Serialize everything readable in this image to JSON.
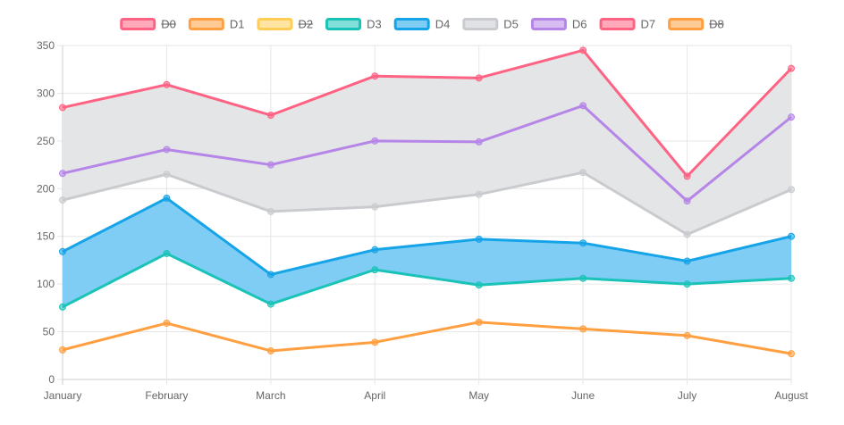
{
  "chart_data": {
    "type": "area",
    "categories": [
      "January",
      "February",
      "March",
      "April",
      "May",
      "June",
      "July",
      "August"
    ],
    "ylim": [
      0,
      350
    ],
    "yticks": [
      0,
      50,
      100,
      150,
      200,
      250,
      300,
      350
    ],
    "grid": true,
    "legend_position": "top",
    "series": [
      {
        "name": "D0",
        "hidden": true,
        "color": "#ff6384"
      },
      {
        "name": "D1",
        "hidden": false,
        "color": "#ff9f40",
        "fill": false,
        "values": [
          31,
          59,
          30,
          39,
          60,
          53,
          46,
          27
        ]
      },
      {
        "name": "D2",
        "hidden": true,
        "color": "#ffcd56"
      },
      {
        "name": "D3",
        "hidden": false,
        "color": "#1ac3b8",
        "fill": false,
        "values": [
          76,
          132,
          79,
          115,
          99,
          106,
          100,
          106
        ]
      },
      {
        "name": "D4",
        "hidden": false,
        "color": "#16a4e8",
        "fill_color": "#7fcdf4",
        "fill_to": "D3",
        "values": [
          134,
          190,
          110,
          136,
          147,
          143,
          124,
          150
        ]
      },
      {
        "name": "D5",
        "hidden": false,
        "color": "#c9cbcf",
        "fill": false,
        "values": [
          188,
          215,
          176,
          181,
          194,
          217,
          152,
          199
        ]
      },
      {
        "name": "D6",
        "hidden": false,
        "color": "#b685e8",
        "fill": false,
        "values": [
          216,
          241,
          225,
          250,
          249,
          287,
          187,
          275
        ]
      },
      {
        "name": "D7",
        "hidden": false,
        "color": "#ff6384",
        "fill_color": "#e4e5e6",
        "fill_to": "D5",
        "values": [
          285,
          309,
          277,
          318,
          316,
          345,
          213,
          326
        ]
      },
      {
        "name": "D8",
        "hidden": true,
        "color": "#ff9f40"
      }
    ]
  }
}
